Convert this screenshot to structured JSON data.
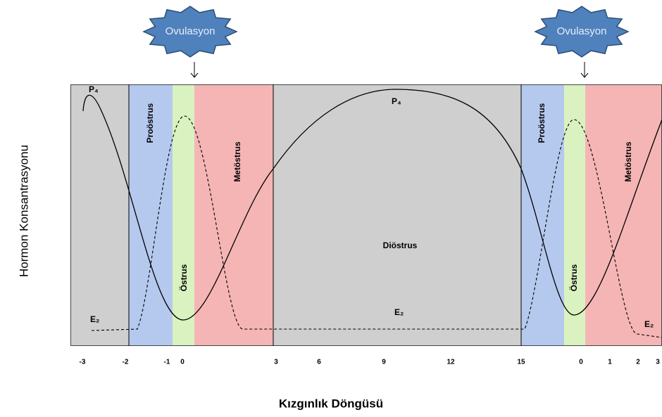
{
  "ovulation_labels": [
    "Ovulasyon",
    "Ovulasyon"
  ],
  "hormones": {
    "p4_labels": [
      "P₄",
      "P₄"
    ],
    "e2_labels": [
      "E₂",
      "E₂",
      "E₂"
    ]
  },
  "phases": [
    "Proöstrus",
    "Östrus",
    "Metöstrus",
    "Diöstrus",
    "Proöstrus",
    "Östrus",
    "Metöstrus"
  ],
  "x_ticks": [
    "-3",
    "-2",
    "-1",
    "0",
    "3",
    "6",
    "9",
    "12",
    "15",
    "0",
    "1",
    "2",
    "3"
  ],
  "y_axis_label": "Hormon Konsantrasyonu",
  "x_axis_label": "Kızgınlık Döngüsü"
}
